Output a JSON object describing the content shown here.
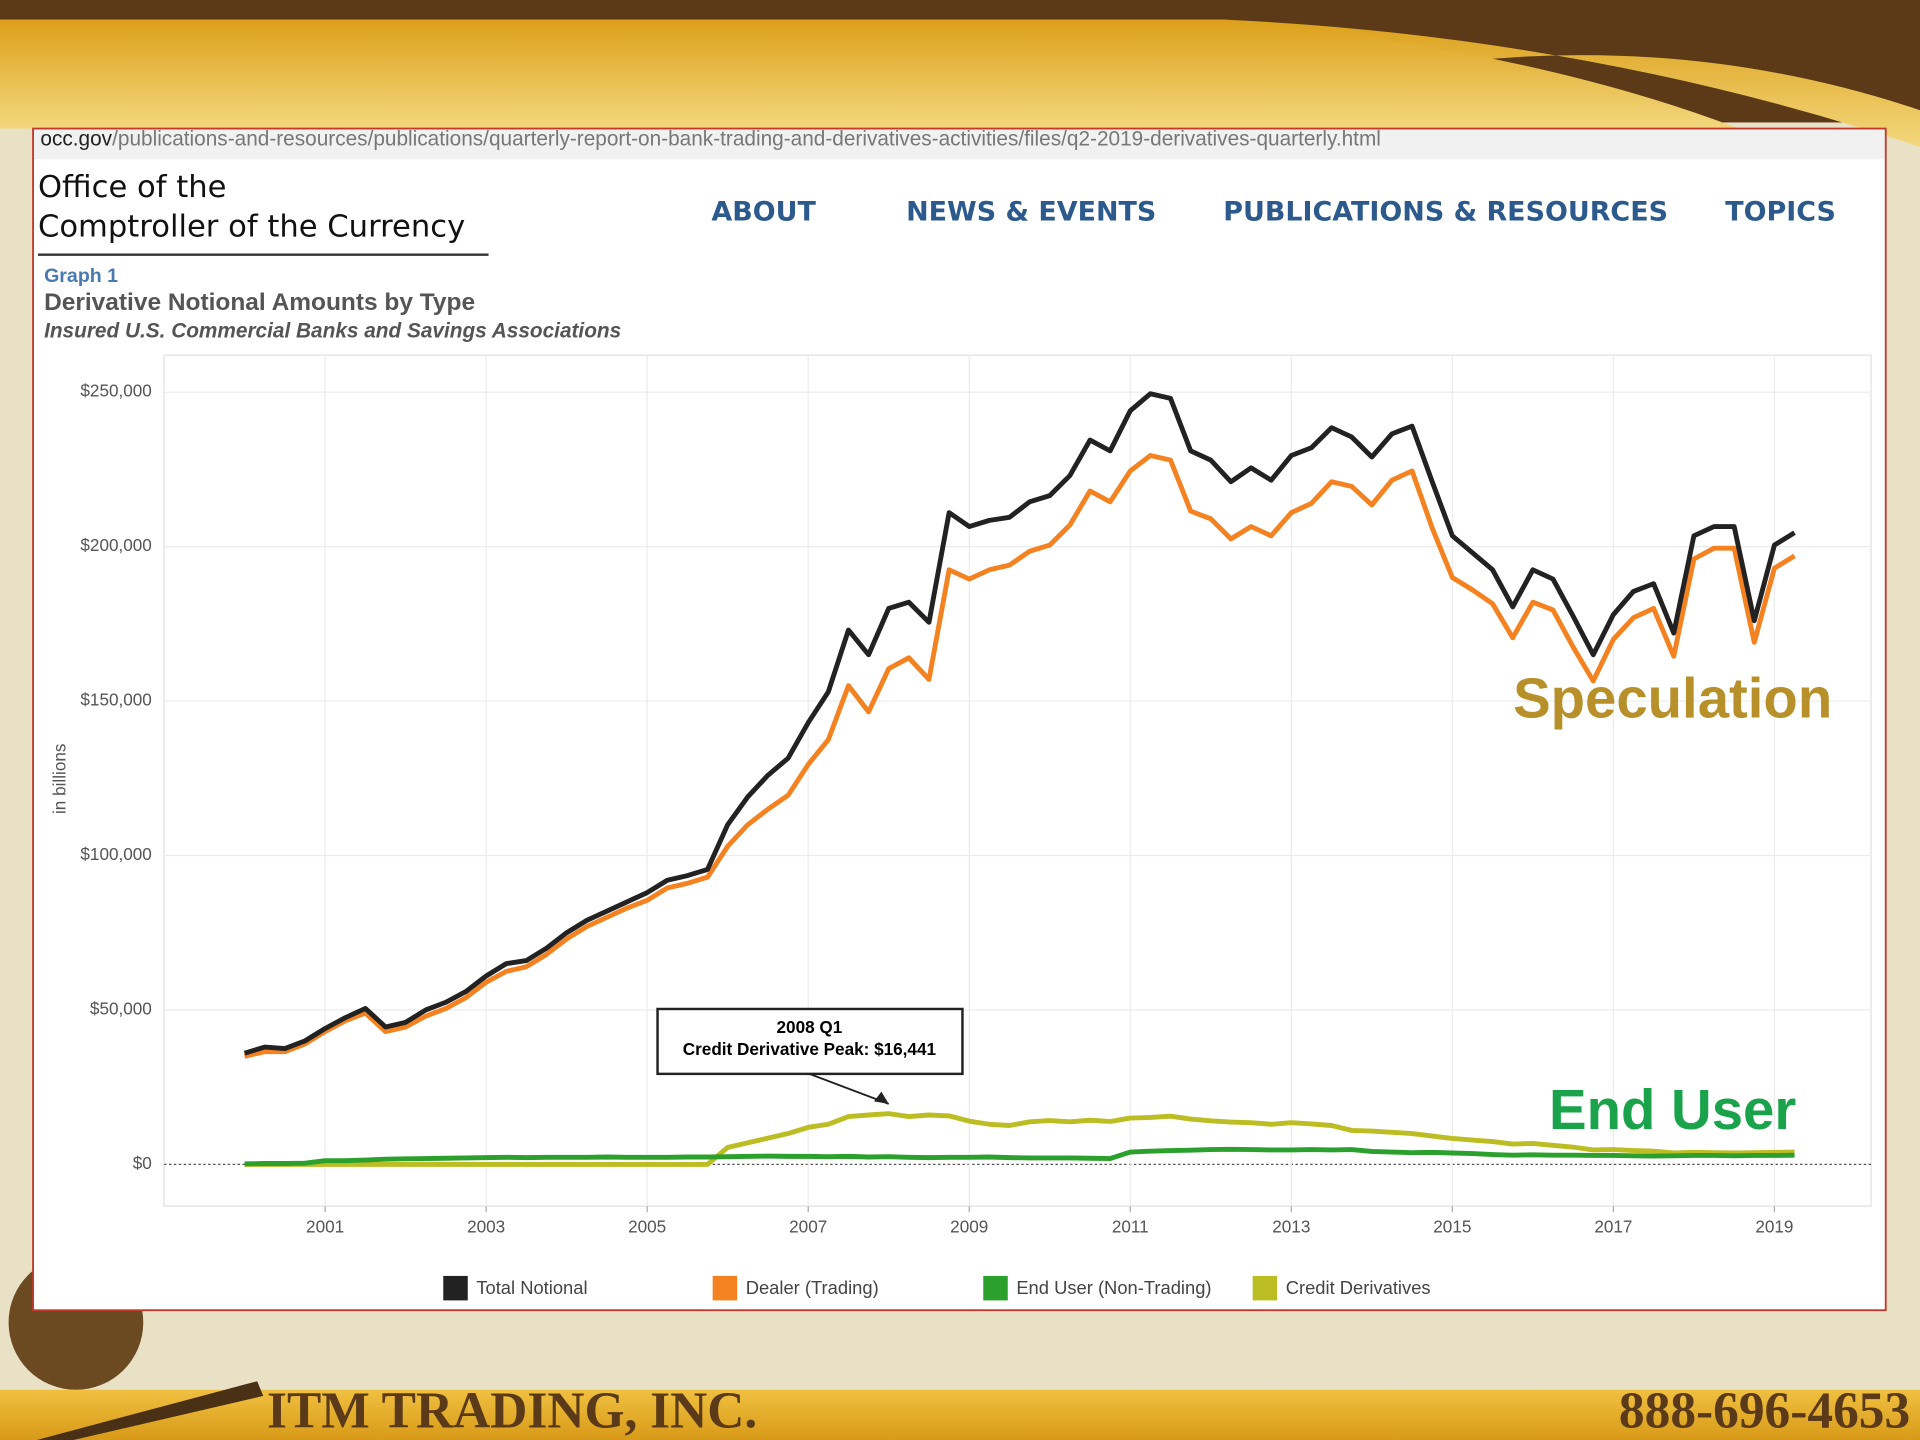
{
  "browser": {
    "url_domain": "occ.gov",
    "url_path": "/publications-and-resources/publications/quarterly-report-on-bank-trading-and-derivatives-activities/files/q2-2019-derivatives-quarterly.html"
  },
  "header": {
    "logo": [
      "Office of the",
      "Comptroller of the Currency"
    ],
    "nav": [
      "ABOUT",
      "NEWS & EVENTS",
      "PUBLICATIONS & RESOURCES",
      "TOPICS"
    ]
  },
  "chart_data": {
    "type": "line",
    "label": "Graph 1",
    "title": "Derivative Notional Amounts by Type",
    "subtitle": "Insured U.S. Commercial Banks and Savings Associations",
    "ylabel": "in billions",
    "x": [
      2000,
      2000.25,
      2000.5,
      2000.75,
      2001,
      2001.25,
      2001.5,
      2001.75,
      2002,
      2002.25,
      2002.5,
      2002.75,
      2003,
      2003.25,
      2003.5,
      2003.75,
      2004,
      2004.25,
      2004.5,
      2004.75,
      2005,
      2005.25,
      2005.5,
      2005.75,
      2006,
      2006.25,
      2006.5,
      2006.75,
      2007,
      2007.25,
      2007.5,
      2007.75,
      2008,
      2008.25,
      2008.5,
      2008.75,
      2009,
      2009.25,
      2009.5,
      2009.75,
      2010,
      2010.25,
      2010.5,
      2010.75,
      2011,
      2011.25,
      2011.5,
      2011.75,
      2012,
      2012.25,
      2012.5,
      2012.75,
      2013,
      2013.25,
      2013.5,
      2013.75,
      2014,
      2014.25,
      2014.5,
      2014.75,
      2015,
      2015.25,
      2015.5,
      2015.75,
      2016,
      2016.25,
      2016.5,
      2016.75,
      2017,
      2017.25,
      2017.5,
      2017.75,
      2018,
      2018.25,
      2018.5,
      2018.75,
      2019,
      2019.25
    ],
    "series": [
      {
        "name": "Total Notional",
        "color": "#222222",
        "values": [
          36000,
          38000,
          37500,
          40000,
          44000,
          47500,
          50500,
          44500,
          46000,
          50000,
          52500,
          56000,
          61000,
          65000,
          66000,
          70000,
          75000,
          79000,
          82000,
          85000,
          88000,
          92000,
          93500,
          95500,
          110000,
          119000,
          126000,
          131500,
          143000,
          153000,
          173000,
          165000,
          180000,
          182000,
          175500,
          211000,
          206500,
          208500,
          209500,
          214500,
          216500,
          223000,
          234500,
          231000,
          244000,
          249500,
          248000,
          231000,
          228000,
          221000,
          225500,
          221500,
          229500,
          232000,
          238500,
          235500,
          229000,
          236500,
          239000,
          221000,
          203500,
          198000,
          192500,
          180500,
          192500,
          189500,
          177500,
          165000,
          178000,
          185500,
          188000,
          172000,
          203500,
          206500,
          206500,
          176000,
          200500,
          204500
        ]
      },
      {
        "name": "Dealer (Trading)",
        "color": "#f58220",
        "values": [
          35000,
          36500,
          36500,
          39000,
          43000,
          46500,
          49000,
          43000,
          44500,
          48000,
          50500,
          54000,
          59000,
          62500,
          64000,
          68000,
          73000,
          77000,
          80000,
          83000,
          85500,
          89500,
          91000,
          93000,
          103000,
          110000,
          115000,
          119500,
          129500,
          137500,
          155000,
          146500,
          160500,
          164000,
          157000,
          192500,
          189500,
          192500,
          194000,
          198500,
          200500,
          207000,
          218000,
          214500,
          224500,
          229500,
          228000,
          211500,
          209000,
          202500,
          206500,
          203500,
          211000,
          214000,
          221000,
          219500,
          213500,
          221500,
          224500,
          206000,
          190000,
          186000,
          181500,
          170500,
          182000,
          179500,
          167500,
          156500,
          170000,
          177000,
          180000,
          164500,
          196000,
          199500,
          199500,
          169000,
          193000,
          197000
        ]
      },
      {
        "name": "End User (Non-Trading)",
        "color": "#2ca02c",
        "values": [
          200,
          300,
          300,
          400,
          1200,
          1200,
          1400,
          1700,
          1800,
          1900,
          2000,
          2100,
          2200,
          2300,
          2200,
          2300,
          2300,
          2300,
          2400,
          2300,
          2300,
          2300,
          2400,
          2400,
          2500,
          2600,
          2700,
          2600,
          2600,
          2500,
          2600,
          2400,
          2500,
          2300,
          2200,
          2300,
          2300,
          2400,
          2200,
          2100,
          2100,
          2100,
          2000,
          1900,
          4000,
          4300,
          4500,
          4600,
          4800,
          4900,
          4800,
          4700,
          4700,
          4800,
          4700,
          4800,
          4200,
          4000,
          3800,
          3900,
          3700,
          3500,
          3200,
          3000,
          3100,
          3000,
          3000,
          2900,
          2900,
          2800,
          2700,
          2800,
          2900,
          2900,
          2800,
          2900,
          2900,
          3000
        ]
      },
      {
        "name": "Credit Derivatives",
        "color": "#bcbd22",
        "values": [
          0,
          0,
          0,
          0,
          0,
          0,
          0,
          0,
          0,
          0,
          0,
          0,
          0,
          0,
          0,
          0,
          0,
          0,
          0,
          0,
          0,
          0,
          0,
          0,
          5500,
          7000,
          8500,
          10000,
          12000,
          13000,
          15500,
          16000,
          16441,
          15500,
          16000,
          15700,
          14000,
          13000,
          12600,
          13800,
          14200,
          13800,
          14300,
          13900,
          15000,
          15200,
          15600,
          14700,
          14100,
          13700,
          13500,
          13000,
          13500,
          13100,
          12600,
          11000,
          10800,
          10400,
          10000,
          9200,
          8400,
          7900,
          7400,
          6600,
          6800,
          6200,
          5600,
          4700,
          4800,
          4500,
          4300,
          3700,
          3900,
          3800,
          3700,
          3800,
          3900,
          4000
        ]
      }
    ],
    "xlim": [
      1999,
      2020.2
    ],
    "xticks": [
      2001,
      2003,
      2005,
      2007,
      2009,
      2011,
      2013,
      2015,
      2017,
      2019
    ],
    "ylim": [
      -13500,
      262000
    ],
    "yticks": [
      {
        "value": 0,
        "label": "$0"
      },
      {
        "value": 50000,
        "label": "$50,000"
      },
      {
        "value": 100000,
        "label": "$100,000"
      },
      {
        "value": 150000,
        "label": "$150,000"
      },
      {
        "value": 200000,
        "label": "$200,000"
      },
      {
        "value": 250000,
        "label": "$250,000"
      }
    ],
    "grid": true,
    "annotation": [
      "2008 Q1",
      "Credit Derivative Peak: $16,441"
    ]
  },
  "overlay": {
    "speculation": "Speculation",
    "end_user": "End User"
  },
  "footer": {
    "company": "ITM TRADING, INC.",
    "phone": "888-696-4653"
  }
}
